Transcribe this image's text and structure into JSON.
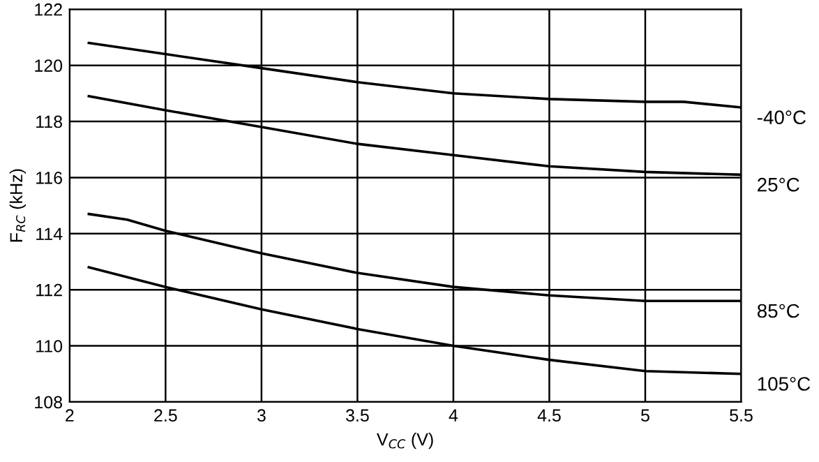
{
  "chart_data": {
    "type": "line",
    "xlabel": "V$_{CC}$ (V)",
    "ylabel": "F$_{RC}$ (kHz)",
    "xlim": [
      2,
      5.5
    ],
    "ylim": [
      108,
      122
    ],
    "xticks": [
      2,
      2.5,
      3,
      3.5,
      4,
      4.5,
      5,
      5.5
    ],
    "yticks": [
      108,
      110,
      112,
      114,
      116,
      118,
      120,
      122
    ],
    "grid": true,
    "marker": "none",
    "line_style": "solid",
    "series": [
      {
        "name": "-40°C",
        "color": "#000000",
        "x": [
          2.1,
          2.5,
          3,
          3.5,
          4,
          4.5,
          5,
          5.2,
          5.5
        ],
        "values": [
          120.8,
          120.4,
          119.9,
          119.4,
          119.0,
          118.8,
          118.7,
          118.7,
          118.5
        ]
      },
      {
        "name": "25°C",
        "color": "#000000",
        "x": [
          2.1,
          2.5,
          3,
          3.5,
          4,
          4.5,
          5,
          5.5
        ],
        "values": [
          118.9,
          118.4,
          117.8,
          117.2,
          116.8,
          116.4,
          116.2,
          116.1
        ]
      },
      {
        "name": "85°C",
        "color": "#000000",
        "x": [
          2.1,
          2.3,
          2.5,
          3,
          3.5,
          4,
          4.5,
          5,
          5.5
        ],
        "values": [
          114.7,
          114.5,
          114.1,
          113.3,
          112.6,
          112.1,
          111.8,
          111.6,
          111.6
        ]
      },
      {
        "name": "105°C",
        "color": "#000000",
        "x": [
          2.1,
          2.5,
          3,
          3.5,
          4,
          4.5,
          5,
          5.5
        ],
        "values": [
          112.8,
          112.1,
          111.3,
          110.6,
          110.0,
          109.5,
          109.1,
          109.0
        ]
      }
    ]
  }
}
